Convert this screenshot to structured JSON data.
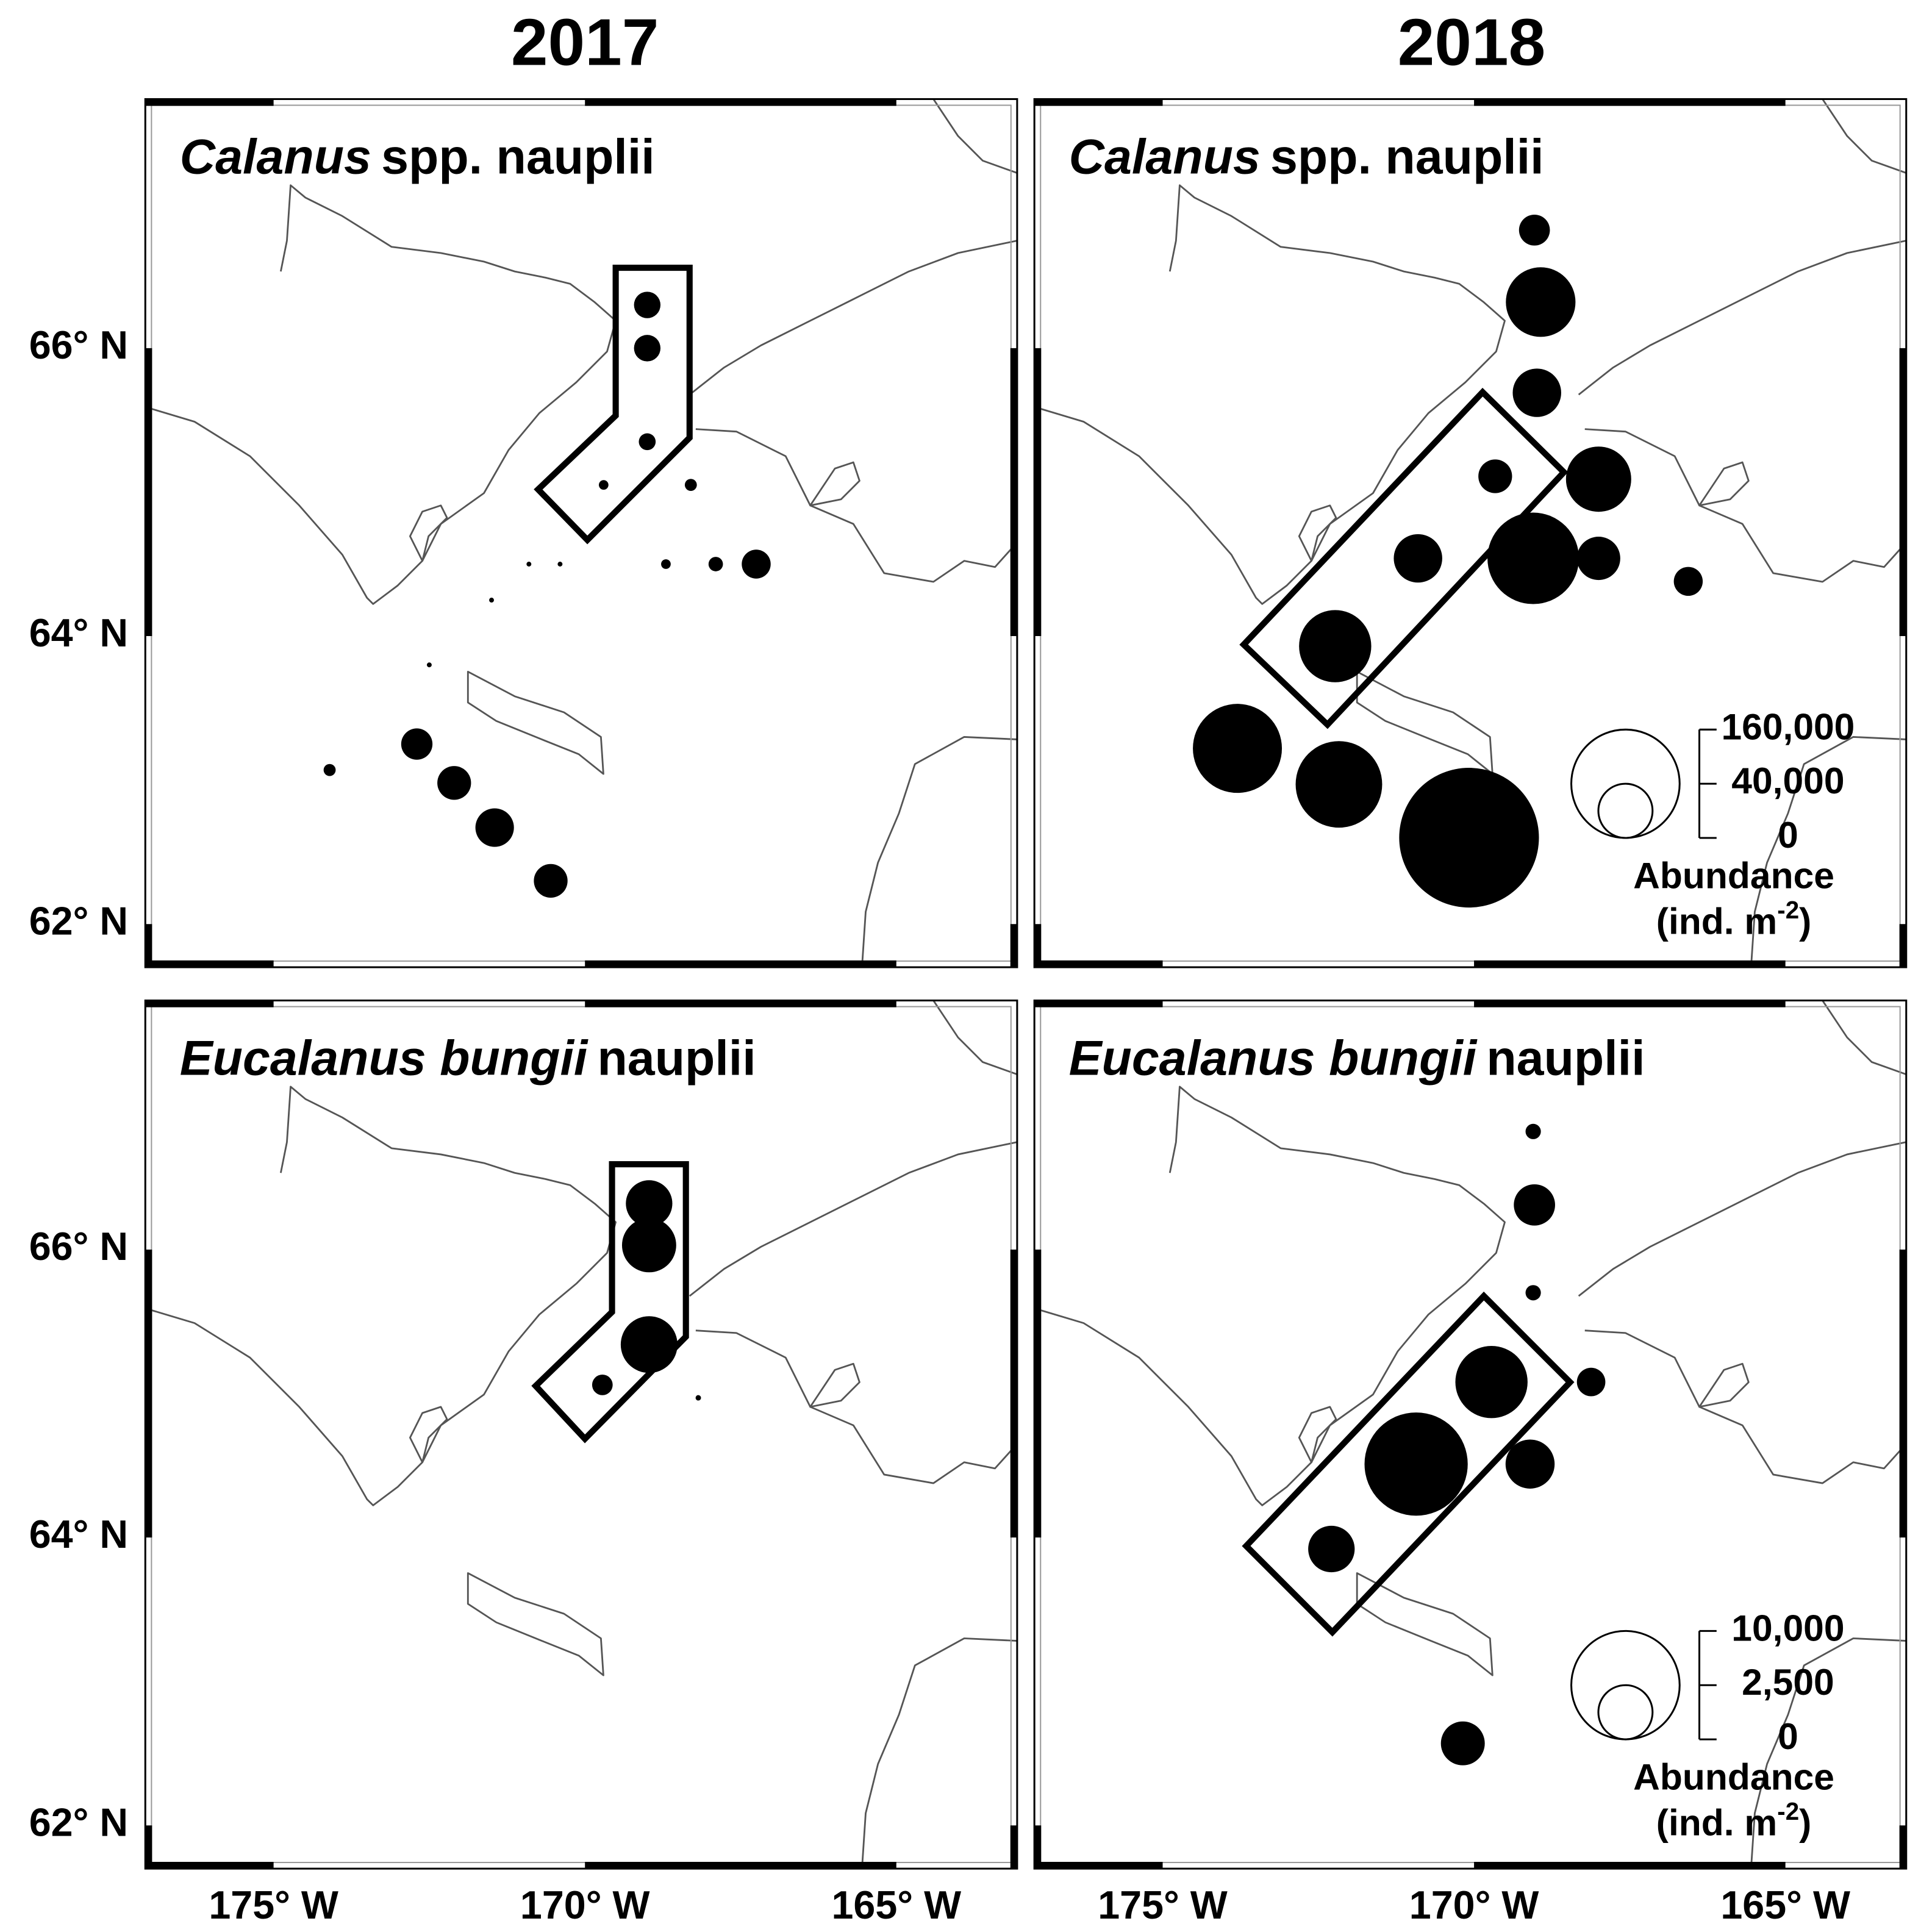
{
  "column_titles": [
    "2017",
    "2018"
  ],
  "axes": {
    "xlim": [
      -177.06,
      -163.06
    ],
    "ylim": [
      61.7,
      67.73
    ],
    "xticks": [
      {
        "value": -175,
        "label": "175° W"
      },
      {
        "value": -170,
        "label": "170° W"
      },
      {
        "value": -165,
        "label": "165° W"
      }
    ],
    "yticks": [
      {
        "value": 66,
        "label": "66° N"
      },
      {
        "value": 64,
        "label": "64° N"
      },
      {
        "value": 62,
        "label": "62° N"
      }
    ]
  },
  "chart_data": [
    {
      "type": "bubble",
      "title_italic": "Calanus",
      "title": "spp. nauplii",
      "x": [
        -169.0,
        -169.0,
        -169.0,
        -169.7,
        -168.3,
        -170.9,
        -170.4,
        -168.7,
        -167.9,
        -167.25,
        -171.5,
        -172.5,
        -172.7,
        -172.1,
        -171.45,
        -170.55,
        -174.1
      ],
      "y": [
        66.3,
        66.0,
        65.35,
        65.05,
        65.05,
        64.5,
        64.5,
        64.5,
        64.5,
        64.5,
        64.25,
        63.8,
        63.25,
        62.98,
        62.67,
        62.3,
        63.07
      ],
      "sizes": [
        9560,
        9560,
        3870,
        1260,
        1980,
        320,
        320,
        1260,
        2840,
        11400,
        320,
        320,
        13350,
        15500,
        20200,
        15500,
        1980
      ]
    },
    {
      "type": "bubble",
      "title_italic": "Calanus",
      "title": "spp. nauplii",
      "x": [
        -169.03,
        -168.93,
        -168.99,
        -169.66,
        -168.0,
        -170.9,
        -169.05,
        -168.0,
        -166.56,
        -172.23,
        -173.8,
        -172.17,
        -170.08
      ],
      "y": [
        66.82,
        66.32,
        65.69,
        65.11,
        65.09,
        64.54,
        64.54,
        64.54,
        64.38,
        63.93,
        63.22,
        62.97,
        62.6
      ],
      "sizes": [
        13000,
        66000,
        32000,
        15500,
        58000,
        32000,
        114000,
        25600,
        11400,
        71000,
        108000,
        102000,
        266000
      ],
      "legend": {
        "ticks": [
          {
            "value": 160000,
            "label": "160,000"
          },
          {
            "value": 40000,
            "label": "40,000"
          },
          0
        ],
        "title": "Abundance",
        "unit": "(ind. m",
        "unit_sup": "-2",
        "unit_end": ")"
      }
    },
    {
      "type": "bubble",
      "title_italic": "Eucalanus bungii",
      "title": "nauplii",
      "x": [
        -168.97,
        -168.97,
        -168.97,
        -169.72,
        -168.18
      ],
      "y": [
        66.32,
        66.03,
        65.34,
        65.06,
        64.97
      ],
      "sizes": [
        1840,
        2500,
        2740,
        360,
        25
      ]
    },
    {
      "type": "bubble",
      "title_italic": "Eucalanus bungii",
      "title": "nauplii",
      "x": [
        -169.05,
        -169.03,
        -169.05,
        -169.72,
        -168.12,
        -170.93,
        -169.1,
        -172.29,
        -170.18
      ],
      "y": [
        66.82,
        66.31,
        65.7,
        65.08,
        65.08,
        64.51,
        64.51,
        63.92,
        62.57
      ],
      "sizes": [
        200,
        1450,
        200,
        4440,
        690,
        9070,
        2050,
        1840,
        1640
      ],
      "legend": {
        "ticks": [
          {
            "value": 10000,
            "label": "10,000"
          },
          {
            "value": 2500,
            "label": "2,500"
          },
          0
        ],
        "title": "Abundance",
        "unit": "(ind. m",
        "unit_sup": "-2",
        "unit_end": ")"
      }
    }
  ]
}
